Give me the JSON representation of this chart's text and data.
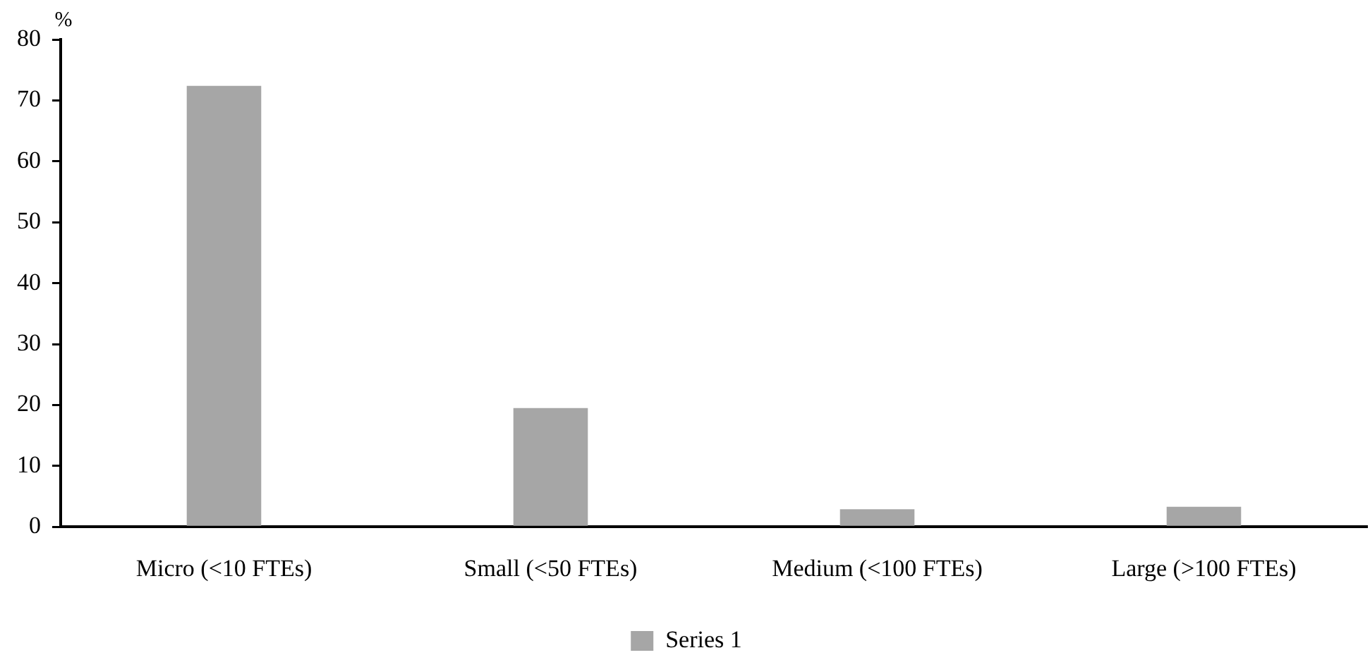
{
  "chart_data": {
    "type": "bar",
    "ylabel": "%",
    "categories": [
      "Micro (<10 FTEs)",
      "Small (<50 FTEs)",
      "Medium (<100 FTEs)",
      "Large (>100 FTEs)"
    ],
    "series": [
      {
        "name": "Series 1",
        "color": "#a6a6a6",
        "values": [
          72.4,
          19.5,
          2.9,
          3.3
        ]
      }
    ],
    "ylim": [
      0,
      80
    ],
    "yticks": [
      0,
      10,
      20,
      30,
      40,
      50,
      60,
      70,
      80
    ],
    "grid": false,
    "legend": "bottom"
  }
}
